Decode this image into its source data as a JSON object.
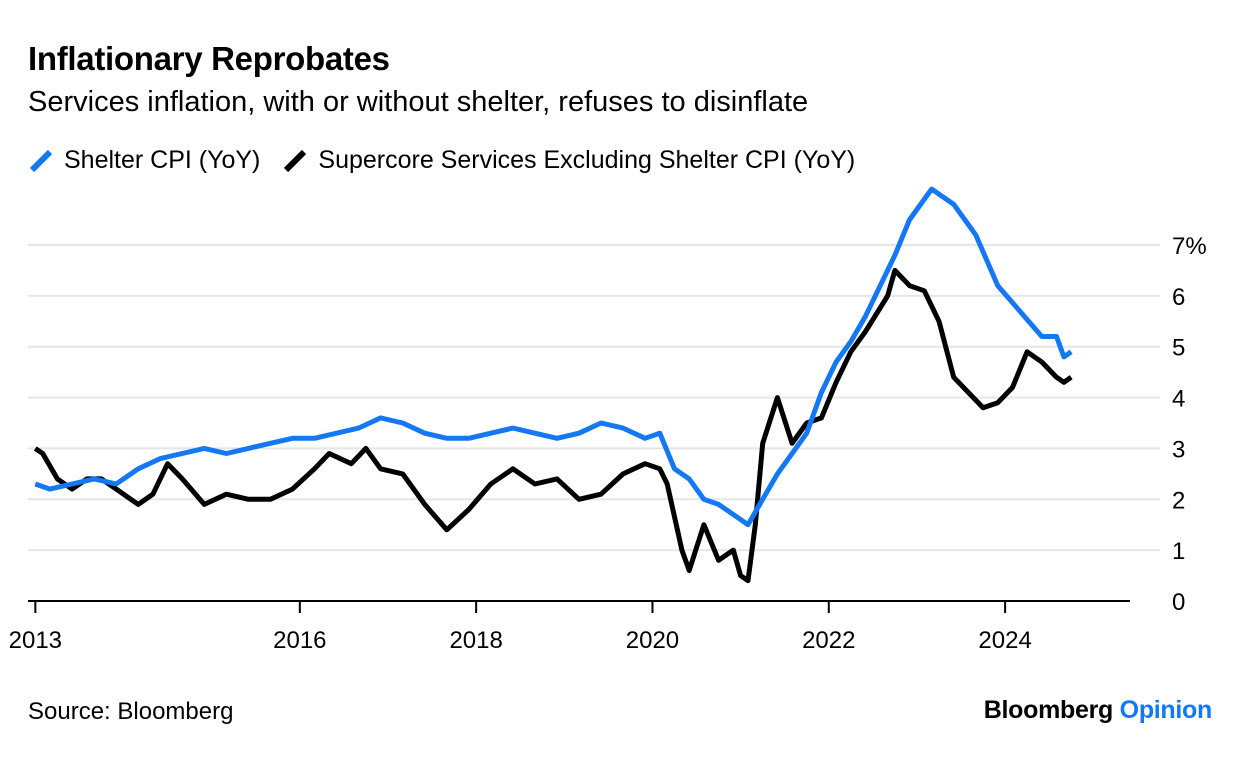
{
  "header": {
    "title": "Inflationary Reprobates",
    "subtitle": "Services inflation, with or without shelter, refuses to disinflate"
  },
  "footer": {
    "source": "Source: Bloomberg",
    "brand_main": "Bloomberg",
    "brand_accent": "Opinion"
  },
  "colors": {
    "shelter": "#1478f5",
    "supercore": "#000000",
    "grid": "#e6e6e6",
    "axis": "#000000"
  },
  "chart_data": {
    "type": "line",
    "title": "Inflationary Reprobates",
    "subtitle": "Services inflation, with or without shelter, refuses to disinflate",
    "xlabel": "",
    "ylabel": "",
    "x_range": [
      "2012-12",
      "2025-06"
    ],
    "x_ticks": [
      {
        "date": "2013-01",
        "label": "2013"
      },
      {
        "date": "2016-01",
        "label": "2016"
      },
      {
        "date": "2018-01",
        "label": "2018"
      },
      {
        "date": "2020-01",
        "label": "2020"
      },
      {
        "date": "2022-01",
        "label": "2022"
      },
      {
        "date": "2024-01",
        "label": "2024"
      }
    ],
    "ylim": [
      0,
      7
    ],
    "y_ticks": [
      {
        "value": 0,
        "label": "0"
      },
      {
        "value": 1,
        "label": "1"
      },
      {
        "value": 2,
        "label": "2"
      },
      {
        "value": 3,
        "label": "3"
      },
      {
        "value": 4,
        "label": "4"
      },
      {
        "value": 5,
        "label": "5"
      },
      {
        "value": 6,
        "label": "6"
      },
      {
        "value": 7,
        "label": "7%"
      }
    ],
    "grid": true,
    "legend_position": "top-left",
    "series": [
      {
        "name": "Shelter CPI (YoY)",
        "color": "#1478f5",
        "points": [
          [
            "2013-01",
            2.3
          ],
          [
            "2013-03",
            2.2
          ],
          [
            "2013-06",
            2.3
          ],
          [
            "2013-09",
            2.4
          ],
          [
            "2013-12",
            2.3
          ],
          [
            "2014-03",
            2.6
          ],
          [
            "2014-06",
            2.8
          ],
          [
            "2014-09",
            2.9
          ],
          [
            "2014-12",
            3.0
          ],
          [
            "2015-03",
            2.9
          ],
          [
            "2015-06",
            3.0
          ],
          [
            "2015-09",
            3.1
          ],
          [
            "2015-12",
            3.2
          ],
          [
            "2016-03",
            3.2
          ],
          [
            "2016-06",
            3.3
          ],
          [
            "2016-09",
            3.4
          ],
          [
            "2016-12",
            3.6
          ],
          [
            "2017-03",
            3.5
          ],
          [
            "2017-06",
            3.3
          ],
          [
            "2017-09",
            3.2
          ],
          [
            "2017-12",
            3.2
          ],
          [
            "2018-03",
            3.3
          ],
          [
            "2018-06",
            3.4
          ],
          [
            "2018-09",
            3.3
          ],
          [
            "2018-12",
            3.2
          ],
          [
            "2019-03",
            3.3
          ],
          [
            "2019-06",
            3.5
          ],
          [
            "2019-09",
            3.4
          ],
          [
            "2019-12",
            3.2
          ],
          [
            "2020-02",
            3.3
          ],
          [
            "2020-04",
            2.6
          ],
          [
            "2020-06",
            2.4
          ],
          [
            "2020-08",
            2.0
          ],
          [
            "2020-10",
            1.9
          ],
          [
            "2020-12",
            1.7
          ],
          [
            "2021-02",
            1.5
          ],
          [
            "2021-04",
            2.0
          ],
          [
            "2021-06",
            2.5
          ],
          [
            "2021-08",
            2.9
          ],
          [
            "2021-10",
            3.3
          ],
          [
            "2021-12",
            4.1
          ],
          [
            "2022-02",
            4.7
          ],
          [
            "2022-04",
            5.1
          ],
          [
            "2022-06",
            5.6
          ],
          [
            "2022-08",
            6.2
          ],
          [
            "2022-10",
            6.8
          ],
          [
            "2022-12",
            7.5
          ],
          [
            "2023-03",
            8.1
          ],
          [
            "2023-06",
            7.8
          ],
          [
            "2023-09",
            7.2
          ],
          [
            "2023-12",
            6.2
          ],
          [
            "2024-03",
            5.7
          ],
          [
            "2024-06",
            5.2
          ],
          [
            "2024-08",
            5.2
          ],
          [
            "2024-09",
            4.8
          ],
          [
            "2024-10",
            4.9
          ]
        ]
      },
      {
        "name": "Supercore Services Excluding Shelter CPI (YoY)",
        "color": "#000000",
        "points": [
          [
            "2013-01",
            3.0
          ],
          [
            "2013-02",
            2.9
          ],
          [
            "2013-04",
            2.4
          ],
          [
            "2013-06",
            2.2
          ],
          [
            "2013-08",
            2.4
          ],
          [
            "2013-10",
            2.4
          ],
          [
            "2013-12",
            2.2
          ],
          [
            "2014-03",
            1.9
          ],
          [
            "2014-05",
            2.1
          ],
          [
            "2014-07",
            2.7
          ],
          [
            "2014-09",
            2.4
          ],
          [
            "2014-12",
            1.9
          ],
          [
            "2015-03",
            2.1
          ],
          [
            "2015-06",
            2.0
          ],
          [
            "2015-09",
            2.0
          ],
          [
            "2015-12",
            2.2
          ],
          [
            "2016-03",
            2.6
          ],
          [
            "2016-05",
            2.9
          ],
          [
            "2016-08",
            2.7
          ],
          [
            "2016-10",
            3.0
          ],
          [
            "2016-12",
            2.6
          ],
          [
            "2017-03",
            2.5
          ],
          [
            "2017-06",
            1.9
          ],
          [
            "2017-09",
            1.4
          ],
          [
            "2017-12",
            1.8
          ],
          [
            "2018-03",
            2.3
          ],
          [
            "2018-06",
            2.6
          ],
          [
            "2018-09",
            2.3
          ],
          [
            "2018-12",
            2.4
          ],
          [
            "2019-03",
            2.0
          ],
          [
            "2019-06",
            2.1
          ],
          [
            "2019-09",
            2.5
          ],
          [
            "2019-12",
            2.7
          ],
          [
            "2020-02",
            2.6
          ],
          [
            "2020-03",
            2.3
          ],
          [
            "2020-05",
            1.0
          ],
          [
            "2020-06",
            0.6
          ],
          [
            "2020-08",
            1.5
          ],
          [
            "2020-10",
            0.8
          ],
          [
            "2020-12",
            1.0
          ],
          [
            "2021-01",
            0.5
          ],
          [
            "2021-02",
            0.4
          ],
          [
            "2021-03",
            1.5
          ],
          [
            "2021-04",
            3.1
          ],
          [
            "2021-06",
            4.0
          ],
          [
            "2021-08",
            3.1
          ],
          [
            "2021-10",
            3.5
          ],
          [
            "2021-12",
            3.6
          ],
          [
            "2022-02",
            4.3
          ],
          [
            "2022-04",
            4.9
          ],
          [
            "2022-06",
            5.3
          ],
          [
            "2022-09",
            6.0
          ],
          [
            "2022-10",
            6.5
          ],
          [
            "2022-12",
            6.2
          ],
          [
            "2023-02",
            6.1
          ],
          [
            "2023-04",
            5.5
          ],
          [
            "2023-06",
            4.4
          ],
          [
            "2023-08",
            4.1
          ],
          [
            "2023-10",
            3.8
          ],
          [
            "2023-12",
            3.9
          ],
          [
            "2024-02",
            4.2
          ],
          [
            "2024-04",
            4.9
          ],
          [
            "2024-06",
            4.7
          ],
          [
            "2024-08",
            4.4
          ],
          [
            "2024-09",
            4.3
          ],
          [
            "2024-10",
            4.4
          ]
        ]
      }
    ]
  }
}
